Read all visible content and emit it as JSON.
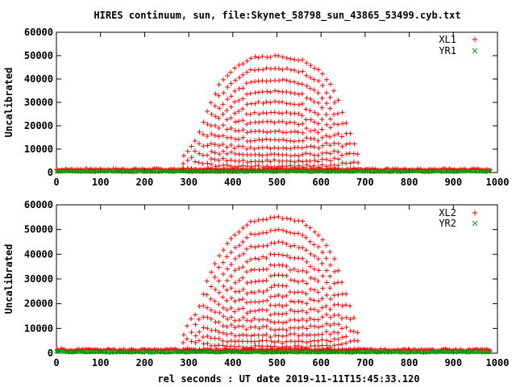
{
  "title": "HIRES continuum, sun, file:Skynet_58798_sun_43865_53499.cyb.txt",
  "xlabel": "rel seconds : UT date 2019-11-11T15:45:33.120",
  "colors": {
    "red": "#ff0000",
    "green": "#00a000",
    "axis": "#000000"
  },
  "chart_data": [
    {
      "type": "scatter",
      "ylabel": "Uncalibrated",
      "xlim": [
        0,
        1000
      ],
      "ylim": [
        0,
        60000
      ],
      "xticks": [
        "0",
        "100",
        "200",
        "300",
        "400",
        "500",
        "600",
        "700",
        "800",
        "900",
        "1000"
      ],
      "yticks": [
        "0",
        "10000",
        "20000",
        "30000",
        "40000",
        "50000",
        "60000"
      ],
      "grid": false,
      "legend_placement": "top-right",
      "series": [
        {
          "name": "XL1",
          "marker": "+",
          "color": "#ff0000",
          "x_range": [
            0,
            985
          ],
          "baseline": 900,
          "peak": 50000,
          "peak_x": [
            450,
            540
          ],
          "signal_x_range": [
            255,
            710
          ],
          "envelope": [
            {
              "x": 280,
              "y": 5000
            },
            {
              "x": 300,
              "y": 10000
            },
            {
              "x": 320,
              "y": 15000
            },
            {
              "x": 340,
              "y": 25000
            },
            {
              "x": 370,
              "y": 38000
            },
            {
              "x": 400,
              "y": 44000
            },
            {
              "x": 440,
              "y": 49000
            },
            {
              "x": 500,
              "y": 50000
            },
            {
              "x": 560,
              "y": 48000
            },
            {
              "x": 600,
              "y": 43000
            },
            {
              "x": 630,
              "y": 35000
            },
            {
              "x": 650,
              "y": 25000
            },
            {
              "x": 670,
              "y": 15000
            },
            {
              "x": 690,
              "y": 5000
            }
          ]
        },
        {
          "name": "YR1",
          "marker": "x",
          "color": "#00a000",
          "x_range": [
            0,
            985
          ],
          "baseline": 0
        }
      ]
    },
    {
      "type": "scatter",
      "ylabel": "Uncalibrated",
      "xlim": [
        0,
        1000
      ],
      "ylim": [
        0,
        60000
      ],
      "xticks": [
        "0",
        "100",
        "200",
        "300",
        "400",
        "500",
        "600",
        "700",
        "800",
        "900",
        "1000"
      ],
      "yticks": [
        "0",
        "10000",
        "20000",
        "30000",
        "40000",
        "50000",
        "60000"
      ],
      "grid": false,
      "legend_placement": "top-right",
      "series": [
        {
          "name": "XL2",
          "marker": "+",
          "color": "#ff0000",
          "x_range": [
            0,
            985
          ],
          "baseline": 900,
          "peak": 55000,
          "peak_x": [
            450,
            540
          ],
          "signal_x_range": [
            255,
            710
          ],
          "envelope": [
            {
              "x": 280,
              "y": 5000
            },
            {
              "x": 300,
              "y": 12000
            },
            {
              "x": 320,
              "y": 17000
            },
            {
              "x": 340,
              "y": 28000
            },
            {
              "x": 370,
              "y": 40000
            },
            {
              "x": 400,
              "y": 47000
            },
            {
              "x": 440,
              "y": 53000
            },
            {
              "x": 500,
              "y": 55000
            },
            {
              "x": 560,
              "y": 53000
            },
            {
              "x": 600,
              "y": 47000
            },
            {
              "x": 630,
              "y": 38000
            },
            {
              "x": 650,
              "y": 28000
            },
            {
              "x": 670,
              "y": 17000
            },
            {
              "x": 690,
              "y": 5000
            }
          ]
        },
        {
          "name": "YR2",
          "marker": "x",
          "color": "#00a000",
          "x_range": [
            0,
            985
          ],
          "baseline": 0
        }
      ]
    }
  ]
}
